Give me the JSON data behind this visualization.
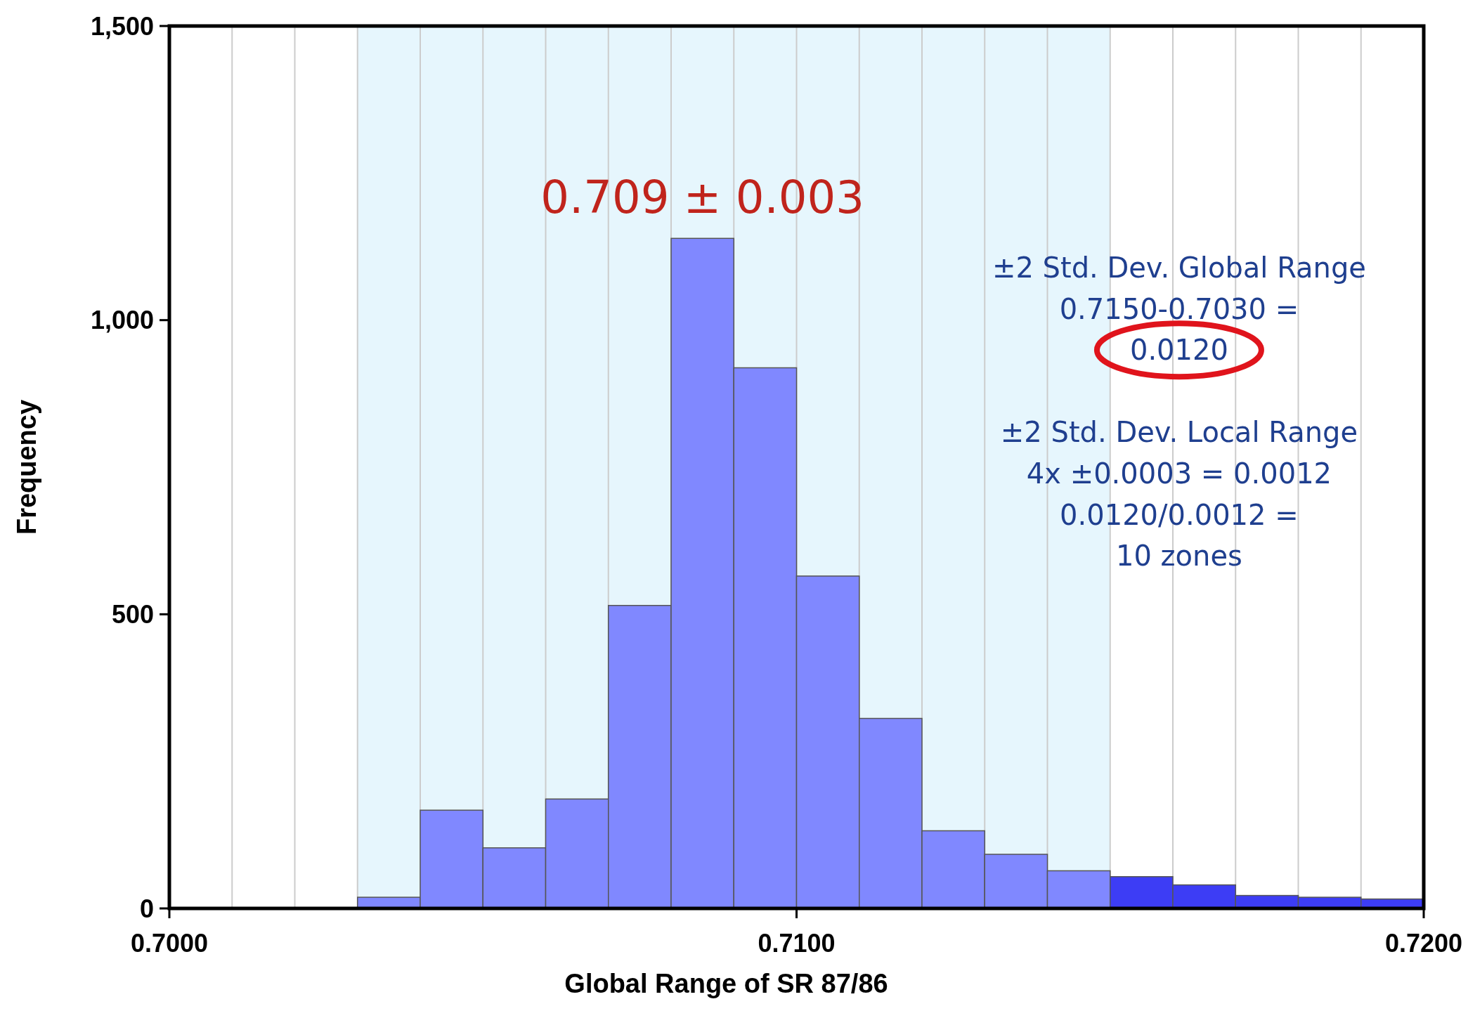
{
  "chart_data": {
    "type": "histogram",
    "xlabel": "Global Range of SR 87/86",
    "ylabel": "Frequency",
    "bins": [
      0.703,
      0.704,
      0.705,
      0.706,
      0.707,
      0.708,
      0.709,
      0.71,
      0.711,
      0.712,
      0.713,
      0.714,
      0.715,
      0.716,
      0.717,
      0.718,
      0.719,
      0.72
    ],
    "values": [
      19,
      167,
      103,
      186,
      515,
      1139,
      919,
      565,
      323,
      132,
      92,
      64,
      54,
      40,
      22,
      19,
      16
    ],
    "colors": [
      "#8088ff",
      "#8088ff",
      "#8088ff",
      "#8088ff",
      "#8088ff",
      "#8088ff",
      "#8088ff",
      "#8088ff",
      "#8088ff",
      "#8088ff",
      "#8088ff",
      "#8088ff",
      "#3d3df5",
      "#3d3df5",
      "#3d3df5",
      "#3d3df5",
      "#3d3df5"
    ],
    "xlim": [
      0.7,
      0.72
    ],
    "xticks": [
      {
        "value": 0.7,
        "label": "0.7000"
      },
      {
        "value": 0.701,
        "label": null
      },
      {
        "value": 0.702,
        "label": null
      },
      {
        "value": 0.703,
        "label": null
      },
      {
        "value": 0.704,
        "label": null
      },
      {
        "value": 0.705,
        "label": null
      },
      {
        "value": 0.706,
        "label": null
      },
      {
        "value": 0.707,
        "label": null
      },
      {
        "value": 0.708,
        "label": null
      },
      {
        "value": 0.709,
        "label": null
      },
      {
        "value": 0.71,
        "label": "0.7100"
      },
      {
        "value": 0.711,
        "label": null
      },
      {
        "value": 0.712,
        "label": null
      },
      {
        "value": 0.713,
        "label": null
      },
      {
        "value": 0.714,
        "label": null
      },
      {
        "value": 0.715,
        "label": null
      },
      {
        "value": 0.716,
        "label": null
      },
      {
        "value": 0.717,
        "label": null
      },
      {
        "value": 0.718,
        "label": null
      },
      {
        "value": 0.719,
        "label": null
      },
      {
        "value": 0.72,
        "label": "0.7200"
      }
    ],
    "ylim": [
      0,
      1500
    ],
    "yticks": [
      0,
      500,
      {
        "value": 1000,
        "label": "1,000"
      },
      {
        "value": 1500,
        "label": "1,500"
      }
    ],
    "grid": "x",
    "bands": [
      {
        "axis": "x",
        "from": 0.703,
        "to": 0.715,
        "color": "#e6f6fd"
      }
    ],
    "annotations": [
      "0.709 ± 0.003",
      "±2 Std. Dev. Global Range",
      "0.7150-0.7030 =",
      "0.0120",
      "±2 Std. Dev. Local Range",
      "4x ±0.0003 = 0.0012",
      "0.0120/0.0012 =",
      "10 zones"
    ]
  }
}
